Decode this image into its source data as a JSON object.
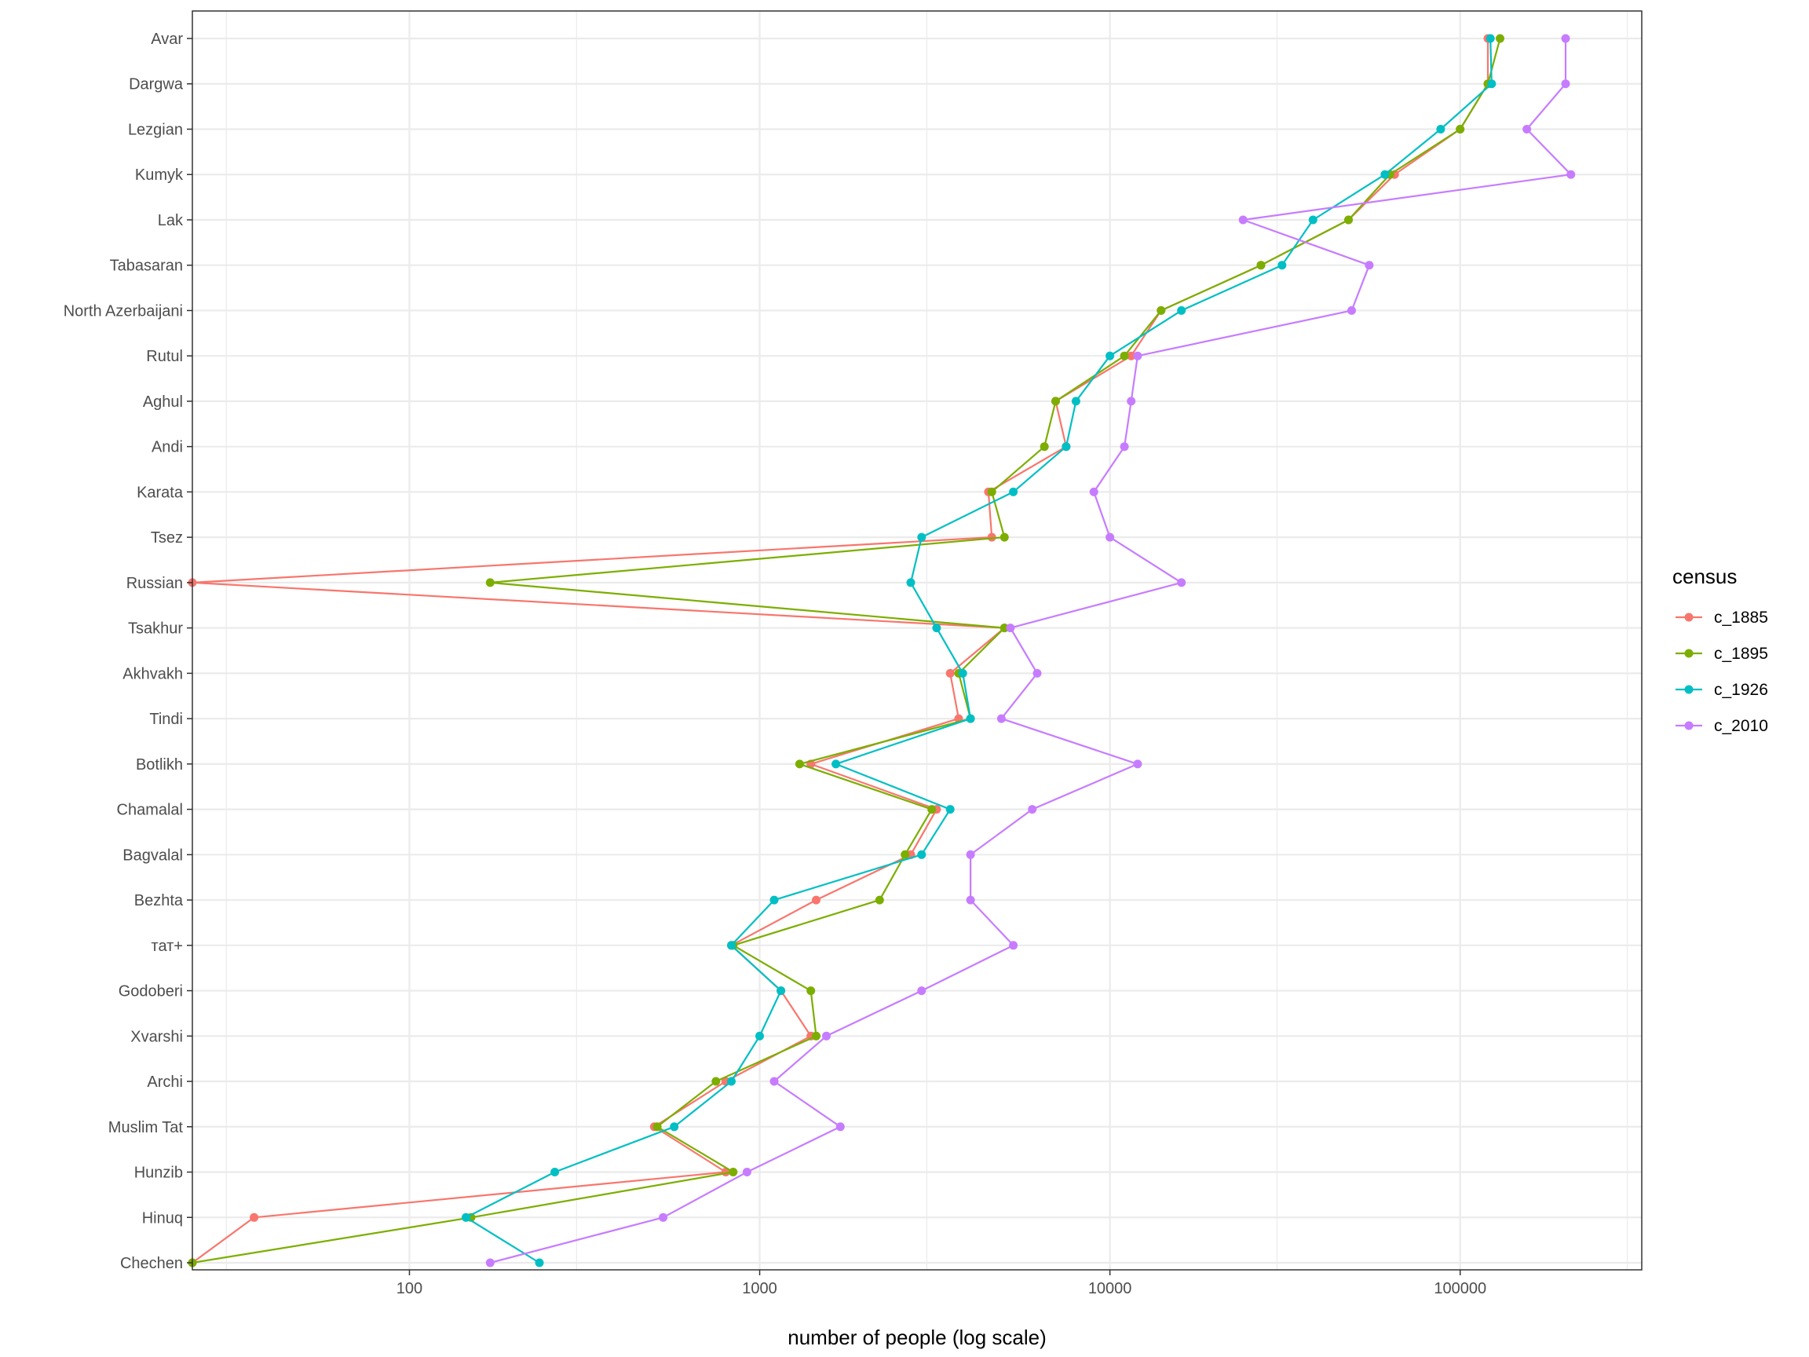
{
  "chart_data": {
    "type": "line",
    "xlabel": "number of people (log scale)",
    "x_scale": "log10",
    "xlim": [
      24,
      330000
    ],
    "x_ticks": [
      "100",
      "1000",
      "10000",
      "100000"
    ],
    "grid": true,
    "legend_title": "census",
    "legend_position": "right",
    "categories": [
      "Avar",
      "Dargwa",
      "Lezgian",
      "Kumyk",
      "Lak",
      "Tabasaran",
      "North Azerbaijani",
      "Rutul",
      "Aghul",
      "Andi",
      "Karata",
      "Tsez",
      "Russian",
      "Tsakhur",
      "Akhvakh",
      "Tindi",
      "Botlikh",
      "Chamalal",
      "Bagvalal",
      "Bezhta",
      "тат+",
      "Godoberi",
      "Xvarshi",
      "Archi",
      "Muslim Tat",
      "Hunzib",
      "Hinuq",
      "Chechen"
    ],
    "series": [
      {
        "name": "c_1885",
        "color": "#F8766D",
        "values": [
          120000,
          120000,
          100000,
          65000,
          48000,
          27000,
          14000,
          11500,
          7000,
          7500,
          4500,
          4600,
          24,
          5000,
          3500,
          3700,
          1400,
          3200,
          2700,
          1450,
          830,
          1150,
          1400,
          800,
          500,
          800,
          36,
          24
        ]
      },
      {
        "name": "c_1895",
        "color": "#7CAE00",
        "values": [
          130000,
          120000,
          100000,
          63000,
          48000,
          27000,
          14000,
          11000,
          7000,
          6500,
          4600,
          5000,
          170,
          5000,
          3700,
          4000,
          1300,
          3100,
          2600,
          2200,
          840,
          1400,
          1450,
          750,
          510,
          840,
          150,
          24
        ]
      },
      {
        "name": "c_1926",
        "color": "#00BFC4",
        "values": [
          122000,
          123000,
          88000,
          61000,
          38000,
          31000,
          16000,
          10000,
          8000,
          7500,
          5300,
          2900,
          2700,
          3200,
          3800,
          4000,
          1650,
          3500,
          2900,
          1100,
          830,
          1150,
          1000,
          830,
          570,
          260,
          145,
          235
        ]
      },
      {
        "name": "c_2010",
        "color": "#C77CFF",
        "values": [
          200000,
          200000,
          155000,
          207000,
          24000,
          55000,
          49000,
          12000,
          11500,
          11000,
          9000,
          10000,
          16000,
          5200,
          6200,
          4900,
          12000,
          6000,
          4000,
          4000,
          5300,
          2900,
          1550,
          1100,
          1700,
          920,
          530,
          170
        ]
      }
    ]
  }
}
